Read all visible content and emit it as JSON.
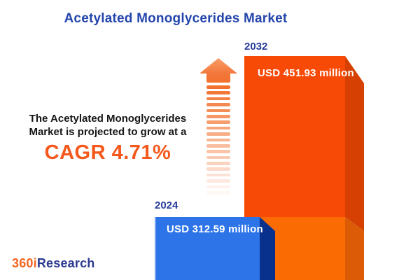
{
  "title": "Acetylated Monoglycerides Market",
  "annotation": {
    "line1": "The Acetylated Monoglycerides",
    "line2": "Market is projected to grow at a",
    "cagr": "CAGR 4.71%"
  },
  "bars": {
    "b2024": {
      "year": "2024",
      "value_label": "USD 312.59 million"
    },
    "b2032": {
      "year": "2032",
      "value_label": "USD 451.93 million"
    }
  },
  "logo": {
    "part1": "360i",
    "part2": "Research"
  },
  "colors": {
    "title-blue": "#2446AC",
    "year-blue": "#283C9B",
    "text-dark": "#161616",
    "cagr-orange": "#F4581B",
    "logo-orange": "#F26522",
    "logo-blue": "#2B3990",
    "blue-front": "#2D74E8",
    "blue-side": "#07318C",
    "orange-front-top": "#F74A06",
    "orange-side-top": "#D64103",
    "orange-front-bottom": "#FB6B03",
    "orange-side-bottom": "#DC5B06",
    "arrow-head-light": "#F89E68",
    "arrow-head-dark": "#F3773C",
    "stripe-orange": "#F2712E",
    "bar-value-white": "#FFFFFF"
  },
  "chart_data": {
    "type": "bar",
    "title": "Acetylated Monoglycerides Market",
    "categories": [
      "2024",
      "2032"
    ],
    "values": [
      312.59,
      451.93
    ],
    "unit": "USD million",
    "value_labels": [
      "USD 312.59 million",
      "USD 451.93 million"
    ],
    "cagr_percent": 4.71,
    "annotation": "The Acetylated Monoglycerides Market is projected to grow at a CAGR 4.71%",
    "grid": false,
    "legend_position": "none",
    "bar_colors": [
      "#2D74E8",
      "#F74A06"
    ]
  }
}
